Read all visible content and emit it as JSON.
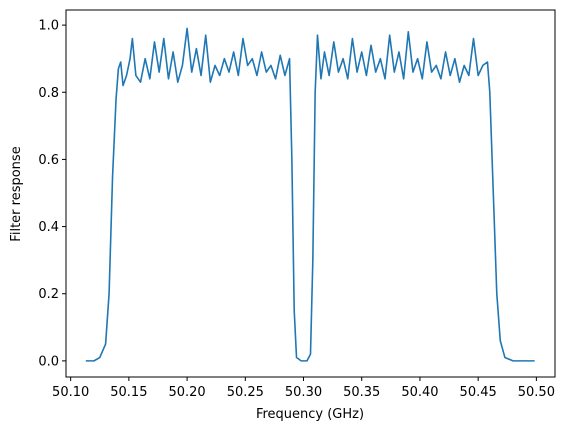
{
  "chart_data": {
    "type": "line",
    "xlabel": "Frequency (GHz)",
    "ylabel": "Filter response",
    "x": [
      50.113,
      50.12,
      50.125,
      50.13,
      50.133,
      50.136,
      50.139,
      50.141,
      50.143,
      50.145,
      50.148,
      50.151,
      50.153,
      50.156,
      50.16,
      50.164,
      50.168,
      50.172,
      50.176,
      50.18,
      50.184,
      50.188,
      50.192,
      50.196,
      50.2,
      50.204,
      50.208,
      50.212,
      50.216,
      50.22,
      50.224,
      50.228,
      50.232,
      50.236,
      50.24,
      50.244,
      50.248,
      50.252,
      50.256,
      50.26,
      50.264,
      50.268,
      50.272,
      50.276,
      50.28,
      50.284,
      50.288,
      50.29,
      50.292,
      50.294,
      50.298,
      50.303,
      50.306,
      50.308,
      50.31,
      50.312,
      50.315,
      50.318,
      50.322,
      50.326,
      50.33,
      50.334,
      50.338,
      50.342,
      50.346,
      50.35,
      50.354,
      50.358,
      50.362,
      50.366,
      50.37,
      50.374,
      50.378,
      50.382,
      50.386,
      50.39,
      50.394,
      50.398,
      50.402,
      50.406,
      50.41,
      50.414,
      50.418,
      50.422,
      50.426,
      50.43,
      50.434,
      50.438,
      50.442,
      50.446,
      50.45,
      50.454,
      50.458,
      50.46,
      50.463,
      50.466,
      50.469,
      50.473,
      50.48,
      50.4985
    ],
    "series": [
      {
        "name": "Filter response",
        "color": "#1f77b4",
        "values": [
          0,
          0,
          0.01,
          0.05,
          0.2,
          0.55,
          0.78,
          0.87,
          0.89,
          0.82,
          0.85,
          0.9,
          0.96,
          0.85,
          0.83,
          0.9,
          0.84,
          0.95,
          0.86,
          0.96,
          0.84,
          0.92,
          0.83,
          0.88,
          0.99,
          0.86,
          0.93,
          0.85,
          0.97,
          0.83,
          0.88,
          0.85,
          0.9,
          0.86,
          0.92,
          0.85,
          0.96,
          0.88,
          0.9,
          0.85,
          0.92,
          0.86,
          0.88,
          0.84,
          0.91,
          0.85,
          0.9,
          0.6,
          0.15,
          0.01,
          0,
          0,
          0.02,
          0.3,
          0.8,
          0.97,
          0.84,
          0.92,
          0.85,
          0.95,
          0.86,
          0.9,
          0.84,
          0.96,
          0.86,
          0.92,
          0.85,
          0.94,
          0.86,
          0.9,
          0.84,
          0.97,
          0.86,
          0.92,
          0.84,
          0.98,
          0.86,
          0.9,
          0.84,
          0.95,
          0.86,
          0.88,
          0.84,
          0.92,
          0.85,
          0.9,
          0.83,
          0.88,
          0.85,
          0.96,
          0.85,
          0.88,
          0.89,
          0.8,
          0.5,
          0.2,
          0.06,
          0.01,
          0,
          0
        ]
      }
    ],
    "xlim": [
      50.096,
      50.516
    ],
    "xticks": [
      {
        "value": 50.1,
        "label": "50.10"
      },
      50.15,
      {
        "value": 50.2,
        "label": "50.20"
      },
      50.25,
      {
        "value": 50.3,
        "label": "50.30"
      },
      50.35,
      {
        "value": 50.4,
        "label": "50.40"
      },
      50.45,
      {
        "value": 50.5,
        "label": "50.50"
      }
    ],
    "ylim": [
      -0.048,
      1.045
    ],
    "yticks": [
      {
        "value": 0,
        "label": "0.0"
      },
      0.2,
      0.4,
      0.6,
      0.8,
      {
        "value": 1,
        "label": "1.0"
      }
    ],
    "grid": false
  }
}
